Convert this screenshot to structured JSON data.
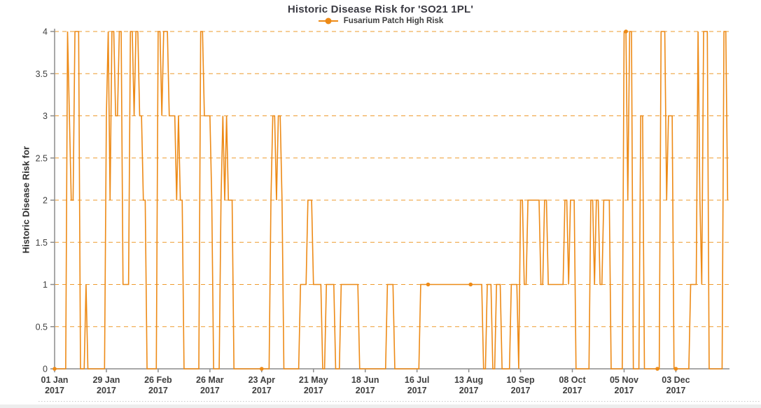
{
  "chart_data": {
    "type": "line",
    "title": "Historic Disease Risk for 'SO21 1PL'",
    "legend": {
      "label": "Fusarium Patch High Risk",
      "position": "top-center"
    },
    "ylabel": "Historic Disease Risk for",
    "xlabel": "",
    "ylim": [
      0,
      4
    ],
    "y_tick_values": [
      0,
      0.5,
      1,
      1.5,
      2,
      2.5,
      3,
      3.5,
      4
    ],
    "grid": "horizontal-dashed-orange",
    "x_days_total": 365,
    "x_ticks": [
      {
        "day": 0,
        "line1": "01 Jan",
        "line2": "2017"
      },
      {
        "day": 28,
        "line1": "29 Jan",
        "line2": "2017"
      },
      {
        "day": 56,
        "line1": "26 Feb",
        "line2": "2017"
      },
      {
        "day": 84,
        "line1": "26 Mar",
        "line2": "2017"
      },
      {
        "day": 112,
        "line1": "23 Apr",
        "line2": "2017"
      },
      {
        "day": 140,
        "line1": "21 May",
        "line2": "2017"
      },
      {
        "day": 168,
        "line1": "18 Jun",
        "line2": "2017"
      },
      {
        "day": 196,
        "line1": "16 Jul",
        "line2": "2017"
      },
      {
        "day": 224,
        "line1": "13 Aug",
        "line2": "2017"
      },
      {
        "day": 252,
        "line1": "10 Sep",
        "line2": "2017"
      },
      {
        "day": 280,
        "line1": "08 Oct",
        "line2": "2017"
      },
      {
        "day": 308,
        "line1": "05 Nov",
        "line2": "2017"
      },
      {
        "day": 336,
        "line1": "03 Dec",
        "line2": "2017"
      }
    ],
    "series": [
      {
        "name": "Fusarium Patch High Risk",
        "color": "#ED8A16",
        "values": [
          0,
          0,
          0,
          0,
          0,
          0,
          0,
          4,
          3,
          2,
          2,
          4,
          4,
          4,
          0,
          0,
          0,
          1,
          0,
          0,
          0,
          0,
          0,
          0,
          0,
          0,
          0,
          0,
          3,
          4,
          2,
          4,
          4,
          3,
          3,
          4,
          4,
          1,
          1,
          1,
          1,
          4,
          4,
          3,
          4,
          4,
          3,
          3,
          2,
          2,
          0,
          0,
          0,
          0,
          0,
          0,
          4,
          4,
          3,
          4,
          4,
          4,
          3,
          3,
          3,
          3,
          2,
          3,
          2,
          2,
          0,
          0,
          0,
          0,
          0,
          0,
          0,
          0,
          0,
          4,
          4,
          3,
          3,
          3,
          3,
          2,
          0,
          0,
          0,
          0,
          2,
          3,
          2,
          3,
          2,
          2,
          2,
          0,
          0,
          0,
          0,
          0,
          0,
          0,
          0,
          0,
          0,
          0,
          0,
          0,
          0,
          0,
          0,
          0,
          0,
          0,
          0,
          2,
          3,
          3,
          2,
          3,
          3,
          2,
          0,
          0,
          0,
          0,
          0,
          0,
          0,
          0,
          0,
          1,
          1,
          1,
          1,
          2,
          2,
          2,
          1,
          1,
          1,
          1,
          1,
          0,
          0,
          1,
          1,
          1,
          1,
          1,
          0,
          0,
          0,
          1,
          1,
          1,
          1,
          1,
          1,
          1,
          1,
          1,
          1,
          0,
          0,
          0,
          0,
          0,
          0,
          0,
          0,
          0,
          0,
          0,
          0,
          0,
          0,
          0,
          1,
          1,
          1,
          1,
          0,
          0,
          0,
          0,
          0,
          0,
          0,
          0,
          0,
          0,
          0,
          0,
          0,
          0,
          1,
          1,
          1,
          1,
          1,
          1,
          1,
          1,
          1,
          1,
          1,
          1,
          1,
          1,
          1,
          1,
          1,
          1,
          1,
          1,
          1,
          1,
          1,
          1,
          1,
          1,
          1,
          1,
          1,
          1,
          1,
          1,
          1,
          1,
          0,
          0,
          1,
          1,
          1,
          0,
          0,
          1,
          1,
          1,
          0,
          0,
          0,
          0,
          0,
          1,
          1,
          1,
          1,
          0,
          2,
          2,
          1,
          1,
          2,
          2,
          2,
          2,
          2,
          2,
          2,
          1,
          1,
          2,
          2,
          1,
          1,
          1,
          1,
          1,
          1,
          1,
          1,
          1,
          2,
          2,
          1,
          2,
          2,
          2,
          0,
          0,
          0,
          0,
          0,
          0,
          0,
          0,
          2,
          2,
          1,
          2,
          2,
          1,
          1,
          2,
          2,
          2,
          2,
          0,
          0,
          0,
          0,
          0,
          0,
          0,
          4,
          4,
          2,
          4,
          4,
          0,
          0,
          0,
          0,
          3,
          3,
          0,
          0,
          0,
          0,
          0,
          0,
          0,
          0,
          0,
          4,
          4,
          4,
          2,
          3,
          3,
          3,
          0,
          0,
          0,
          0,
          0,
          0,
          0,
          0,
          0,
          1,
          1,
          1,
          1,
          4,
          2,
          1,
          4,
          4,
          4,
          0,
          0,
          0,
          0,
          0,
          0,
          0,
          0,
          4,
          4,
          2
        ]
      }
    ],
    "marker_days": [
      0,
      112,
      202,
      225,
      309,
      326,
      336
    ]
  },
  "colors": {
    "line": "#ED8A16",
    "gridline": "#EE9B2E",
    "axis": "#8C8C8C",
    "title_text": "#3A3A42",
    "tick_text": "#3F3F3F",
    "separator": "#C9C9C9",
    "track": "#EDEDED"
  }
}
